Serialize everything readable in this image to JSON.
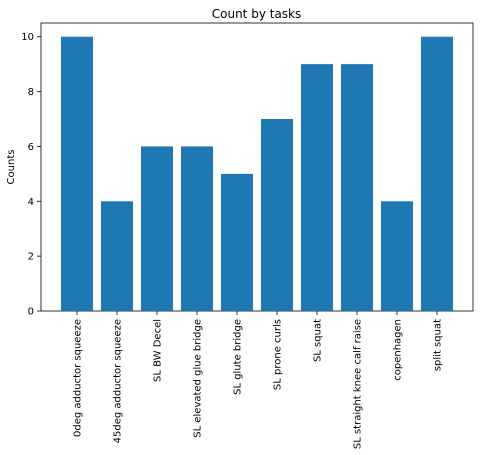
{
  "chart_data": {
    "type": "bar",
    "title": "Count by tasks",
    "xlabel": "",
    "ylabel": "Counts",
    "categories": [
      "0deg adductor squeeze",
      "45deg adductor squeeze",
      "SL BW Decel",
      "SL elevated glue bridge",
      "SL glute bridge",
      "SL prone curls",
      "SL squat",
      "SL straight knee calf raise",
      "copenhagen",
      "split squat"
    ],
    "values": [
      10,
      4,
      6,
      6,
      5,
      7,
      9,
      9,
      4,
      10
    ],
    "ylim": [
      0,
      10.5
    ],
    "yticks": [
      "0",
      "2",
      "4",
      "6",
      "8",
      "10"
    ],
    "bar_color": "#1f77b4",
    "grid": false,
    "legend": "none"
  }
}
